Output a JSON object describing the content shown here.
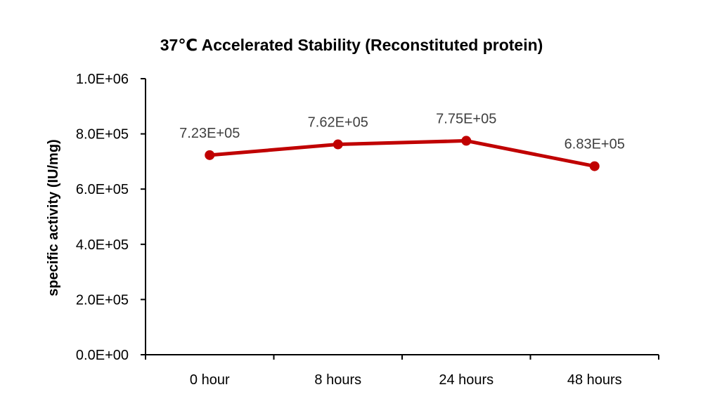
{
  "chart_data": {
    "type": "line",
    "title": "37℃ Accelerated  Stability (Reconstituted protein)",
    "xlabel": "",
    "ylabel": "specific activity (IU/mg)",
    "categories": [
      "0 hour",
      "8 hours",
      "24 hours",
      "48 hours"
    ],
    "series": [
      {
        "values": [
          723000,
          762000,
          775000,
          683000
        ],
        "data_labels": [
          "7.23E+05",
          "7.62E+05",
          "7.75E+05",
          "6.83E+05"
        ],
        "color": "#C00000"
      }
    ],
    "ylim": [
      0,
      1000000
    ],
    "y_ticks": [
      0,
      200000,
      400000,
      600000,
      800000,
      1000000
    ],
    "y_tick_labels": [
      "0.0E+00",
      "2.0E+05",
      "4.0E+05",
      "6.0E+05",
      "8.0E+05",
      "1.0E+06"
    ],
    "grid": false,
    "legend": "none"
  }
}
